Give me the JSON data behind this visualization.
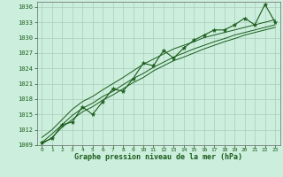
{
  "xlabel": "Graphe pression niveau de la mer (hPa)",
  "bg_color": "#cceedd",
  "grid_color": "#aaccbb",
  "line_color": "#1a5c1a",
  "marker_color": "#1a5c1a",
  "hours": [
    0,
    1,
    2,
    3,
    4,
    5,
    6,
    7,
    8,
    9,
    10,
    11,
    12,
    13,
    14,
    15,
    16,
    17,
    18,
    19,
    20,
    21,
    22,
    23
  ],
  "pressure": [
    1009.5,
    1010.3,
    1013.0,
    1013.5,
    1016.5,
    1015.0,
    1017.5,
    1020.0,
    1019.5,
    1022.0,
    1025.0,
    1024.5,
    1027.5,
    1026.0,
    1028.0,
    1029.5,
    1030.5,
    1031.5,
    1031.5,
    1032.5,
    1033.8,
    1032.5,
    1036.5,
    1033.0
  ],
  "trend_upper": [
    1010.5,
    1012.0,
    1014.0,
    1016.0,
    1017.5,
    1018.5,
    1019.8,
    1021.0,
    1022.2,
    1023.5,
    1024.8,
    1025.8,
    1026.8,
    1027.8,
    1028.5,
    1029.2,
    1030.0,
    1030.5,
    1031.0,
    1031.5,
    1032.0,
    1032.5,
    1033.0,
    1033.5
  ],
  "trend_mid": [
    1009.5,
    1011.2,
    1013.0,
    1014.8,
    1016.2,
    1017.2,
    1018.5,
    1019.5,
    1020.8,
    1022.0,
    1023.0,
    1024.2,
    1025.2,
    1026.2,
    1027.0,
    1027.8,
    1028.5,
    1029.2,
    1029.8,
    1030.5,
    1031.0,
    1031.5,
    1032.0,
    1032.5
  ],
  "trend_lower": [
    1009.2,
    1010.5,
    1012.5,
    1014.0,
    1015.5,
    1016.5,
    1017.8,
    1018.8,
    1020.0,
    1021.2,
    1022.2,
    1023.5,
    1024.5,
    1025.5,
    1026.2,
    1027.0,
    1027.8,
    1028.5,
    1029.2,
    1029.8,
    1030.5,
    1031.0,
    1031.5,
    1032.0
  ],
  "ylim_min": 1009,
  "ylim_max": 1037,
  "yticks": [
    1009,
    1012,
    1015,
    1018,
    1021,
    1024,
    1027,
    1030,
    1033,
    1036
  ],
  "xlim_min": -0.5,
  "xlim_max": 23.5
}
